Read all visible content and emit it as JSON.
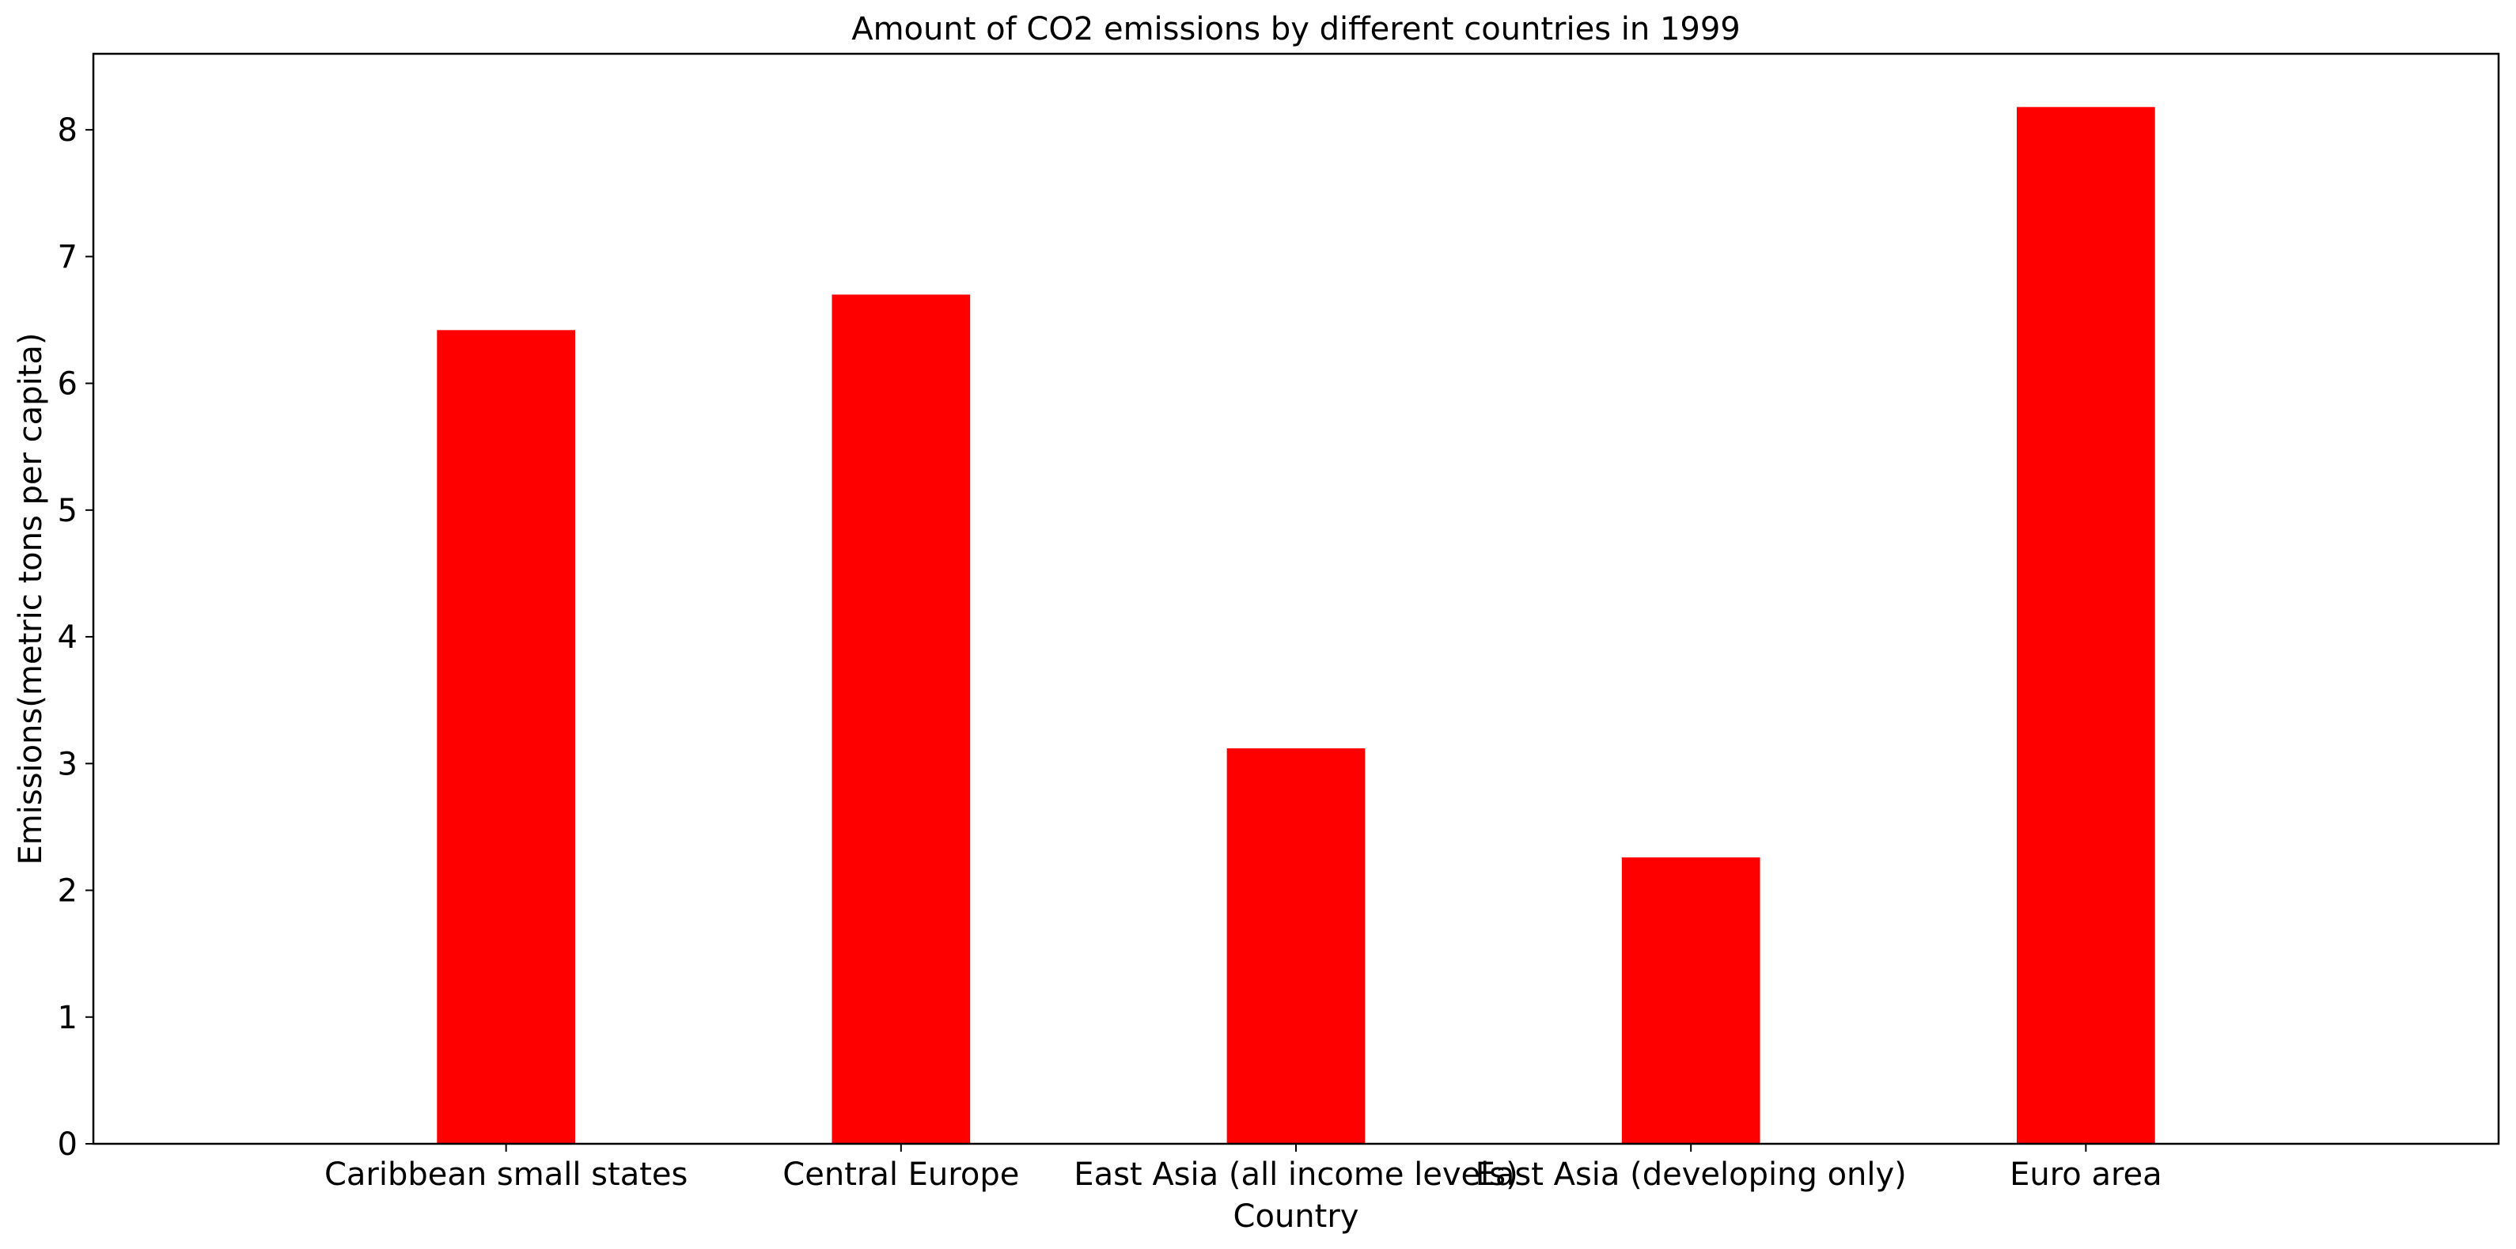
{
  "chart_data": {
    "type": "bar",
    "title": "Amount of CO2 emissions by different countries in 1999",
    "xlabel": "Country",
    "ylabel": "Emissions(metric tons per capita)",
    "categories": [
      "Caribbean small states",
      "Central Europe",
      "East Asia (all income levels)",
      "East Asia (developing only)",
      "Euro area"
    ],
    "values": [
      6.42,
      6.7,
      3.12,
      2.26,
      8.18
    ],
    "ylim": [
      0,
      8.6
    ],
    "yticks": [
      0,
      1,
      2,
      3,
      4,
      5,
      6,
      7,
      8
    ],
    "bar_color": "#ff0000",
    "grid": false,
    "legend": false
  }
}
